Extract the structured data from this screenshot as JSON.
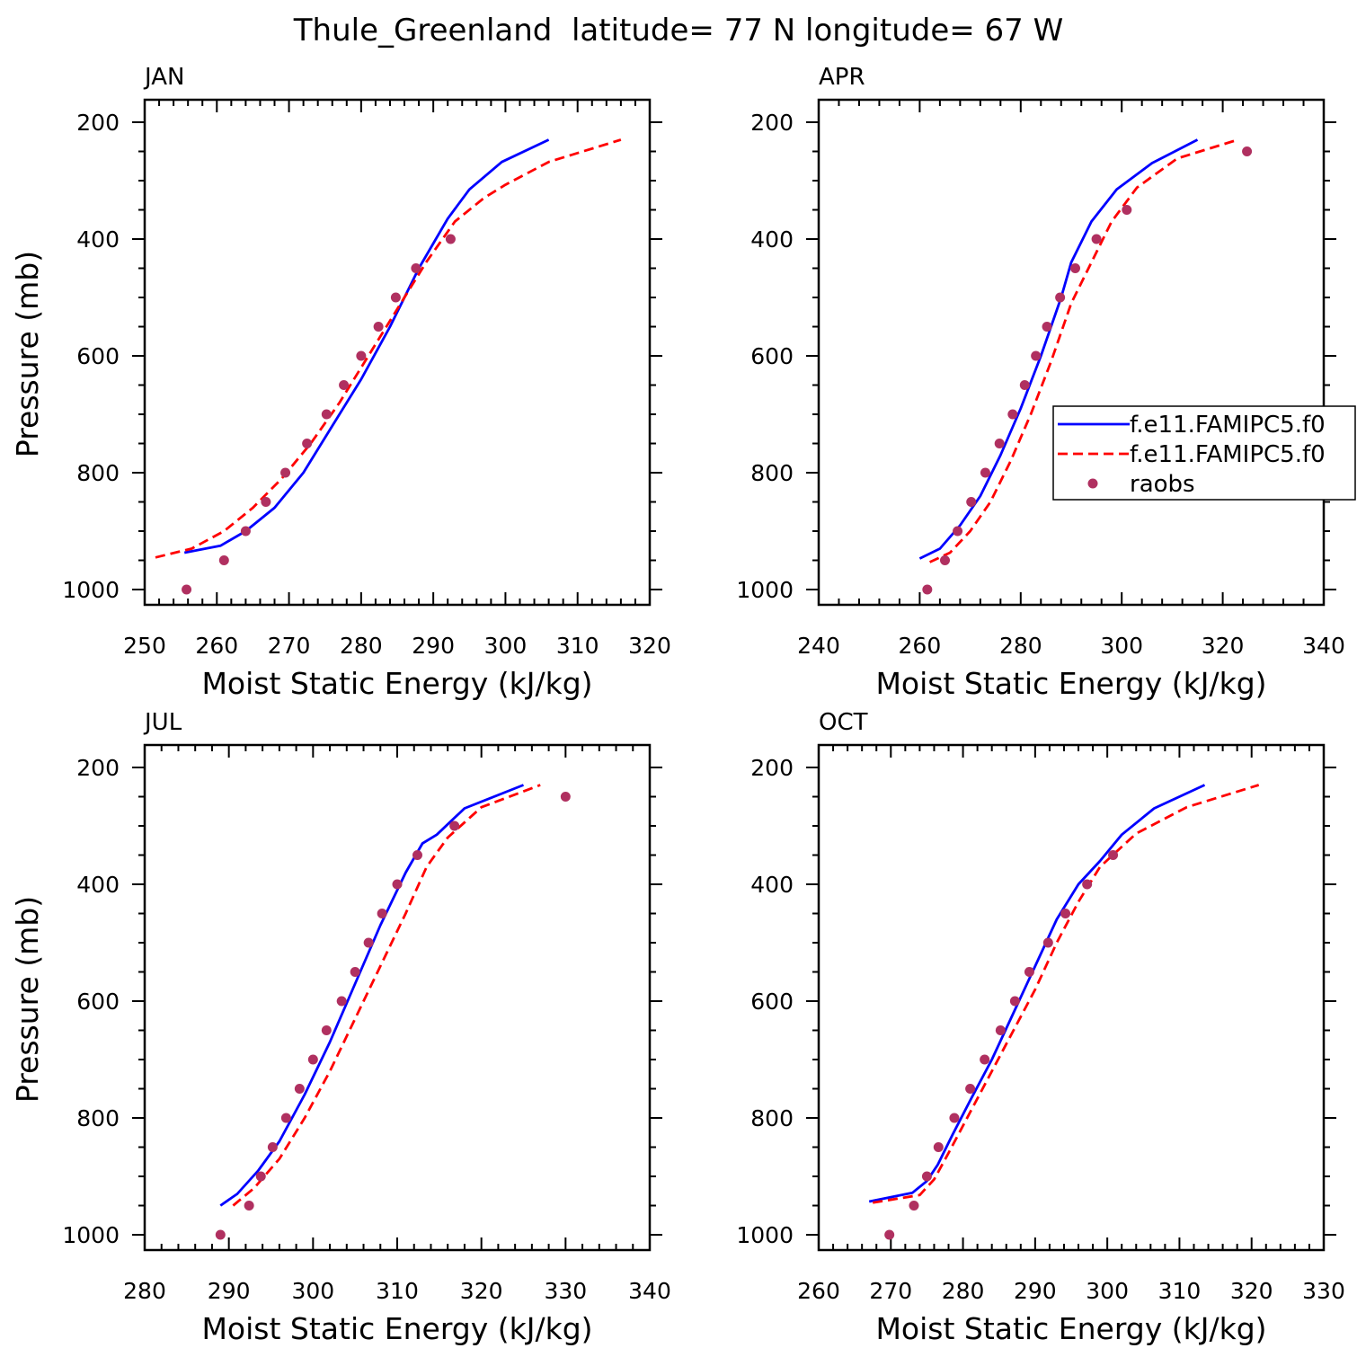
{
  "figure": {
    "title": "Thule_Greenland  latitude= 77 N longitude= 67 W"
  },
  "colors": {
    "model_solid": "#0000ff",
    "model_dashed": "#ff0000",
    "raobs": "#b03060",
    "axes": "#000000"
  },
  "legend": {
    "entries": [
      {
        "label": "f.e11.FAMIPC5.f0",
        "style": "solid",
        "color": "#0000ff"
      },
      {
        "label": "f.e11.FAMIPC5.f0",
        "style": "dashed",
        "color": "#ff0000"
      },
      {
        "label": "raobs",
        "style": "marker",
        "color": "#b03060"
      }
    ]
  },
  "chart_data": [
    {
      "type": "line",
      "panel": "JAN",
      "xlabel": "Moist Static Energy (kJ/kg)",
      "ylabel": "Pressure (mb)",
      "xlim": [
        250,
        320
      ],
      "ylim": [
        200,
        1000
      ],
      "xticks": [
        250,
        260,
        270,
        280,
        290,
        300,
        310,
        320
      ],
      "yticks": [
        200,
        400,
        600,
        800,
        1000
      ],
      "y_inverted": true,
      "series": [
        {
          "style": "solid",
          "color": "#0000ff",
          "x": [
            255.5,
            260.5,
            264,
            268,
            272,
            276,
            280,
            284,
            288,
            292,
            295,
            299.5,
            306
          ],
          "y": [
            937,
            925,
            900,
            860,
            800,
            720,
            640,
            550,
            450,
            365,
            315,
            268,
            230
          ]
        },
        {
          "style": "dashed",
          "color": "#ff0000",
          "x": [
            251.5,
            256.5,
            261,
            265,
            269,
            273,
            277,
            281,
            285,
            289,
            293,
            297,
            300,
            306,
            316
          ],
          "y": [
            945,
            930,
            900,
            860,
            810,
            750,
            680,
            600,
            520,
            440,
            370,
            330,
            307,
            268,
            230
          ]
        },
        {
          "style": "marker",
          "color": "#b03060",
          "x": [
            255.8,
            261,
            264,
            266.8,
            269.5,
            272.5,
            275.2,
            277.6,
            280,
            282.4,
            284.8,
            287.6,
            292.4
          ],
          "y": [
            1000,
            950,
            900,
            850,
            800,
            750,
            700,
            650,
            600,
            550,
            500,
            450,
            400
          ]
        }
      ]
    },
    {
      "type": "line",
      "panel": "APR",
      "xlabel": "Moist Static Energy (kJ/kg)",
      "ylabel": "",
      "xlim": [
        240,
        340
      ],
      "ylim": [
        200,
        1000
      ],
      "xticks": [
        240,
        260,
        280,
        300,
        320,
        340
      ],
      "yticks": [
        200,
        400,
        600,
        800,
        1000
      ],
      "y_inverted": true,
      "legend_placement": "right",
      "series": [
        {
          "style": "solid",
          "color": "#0000ff",
          "x": [
            260,
            264,
            268,
            272,
            276,
            280,
            284,
            288,
            290,
            294,
            299,
            306,
            315
          ],
          "y": [
            947,
            930,
            890,
            840,
            770,
            690,
            600,
            500,
            440,
            370,
            315,
            270,
            230
          ]
        },
        {
          "style": "dashed",
          "color": "#ff0000",
          "x": [
            262,
            266,
            270,
            274,
            278,
            282,
            286,
            290,
            294,
            298,
            303,
            311,
            323
          ],
          "y": [
            953,
            937,
            900,
            850,
            780,
            700,
            610,
            510,
            440,
            370,
            312,
            262,
            230
          ]
        },
        {
          "style": "marker",
          "color": "#b03060",
          "x": [
            261.5,
            265,
            267.5,
            270.2,
            273,
            275.8,
            278.4,
            280.8,
            283,
            285.2,
            287.8,
            290.8,
            295,
            301,
            324.8
          ],
          "y": [
            1000,
            950,
            900,
            850,
            800,
            750,
            700,
            650,
            600,
            550,
            500,
            450,
            400,
            350,
            250
          ]
        }
      ]
    },
    {
      "type": "line",
      "panel": "JUL",
      "xlabel": "Moist Static Energy (kJ/kg)",
      "ylabel": "Pressure (mb)",
      "xlim": [
        280,
        340
      ],
      "ylim": [
        200,
        1000
      ],
      "xticks": [
        280,
        290,
        300,
        310,
        320,
        330,
        340
      ],
      "yticks": [
        200,
        400,
        600,
        800,
        1000
      ],
      "y_inverted": true,
      "series": [
        {
          "style": "solid",
          "color": "#0000ff",
          "x": [
            289,
            291,
            293.5,
            296,
            299,
            302,
            305,
            308,
            311,
            313,
            314.7,
            318,
            325
          ],
          "y": [
            950,
            930,
            890,
            840,
            760,
            670,
            570,
            470,
            380,
            330,
            315,
            270,
            230
          ]
        },
        {
          "style": "dashed",
          "color": "#ff0000",
          "x": [
            290.5,
            293,
            296,
            299,
            302,
            305,
            308,
            311,
            313.5,
            316,
            320,
            327
          ],
          "y": [
            950,
            920,
            870,
            800,
            720,
            630,
            540,
            450,
            370,
            320,
            268,
            230
          ]
        },
        {
          "style": "marker",
          "color": "#b03060",
          "x": [
            289,
            292.4,
            293.8,
            295.2,
            296.8,
            298.4,
            300,
            301.6,
            303.4,
            305,
            306.6,
            308.2,
            310,
            312.4,
            316.8,
            330
          ],
          "y": [
            1000,
            950,
            900,
            850,
            800,
            750,
            700,
            650,
            600,
            550,
            500,
            450,
            400,
            350,
            300,
            250
          ]
        }
      ]
    },
    {
      "type": "line",
      "panel": "OCT",
      "xlabel": "Moist Static Energy (kJ/kg)",
      "ylabel": "",
      "xlim": [
        260,
        330
      ],
      "ylim": [
        200,
        1000
      ],
      "xticks": [
        260,
        270,
        280,
        290,
        300,
        310,
        320,
        330
      ],
      "yticks": [
        200,
        400,
        600,
        800,
        1000
      ],
      "y_inverted": true,
      "series": [
        {
          "style": "solid",
          "color": "#0000ff",
          "x": [
            267,
            273,
            275,
            276.5,
            278.5,
            281,
            284,
            287,
            290,
            293,
            296,
            299,
            302,
            306.5,
            313.5
          ],
          "y": [
            943,
            928,
            908,
            880,
            830,
            770,
            700,
            620,
            540,
            460,
            400,
            360,
            315,
            270,
            230
          ]
        },
        {
          "style": "dashed",
          "color": "#ff0000",
          "x": [
            267.5,
            274,
            276,
            278,
            281,
            284,
            287,
            290,
            293,
            296,
            299,
            304,
            311,
            321
          ],
          "y": [
            945,
            932,
            905,
            860,
            790,
            720,
            650,
            580,
            500,
            430,
            370,
            313,
            268,
            230
          ]
        },
        {
          "style": "marker",
          "color": "#b03060",
          "x": [
            269.8,
            273.2,
            275,
            276.6,
            278.8,
            281,
            283,
            285.2,
            287.2,
            289.2,
            291.8,
            294.2,
            297.2,
            300.8
          ],
          "y": [
            1000,
            950,
            900,
            850,
            800,
            750,
            700,
            650,
            600,
            550,
            500,
            450,
            400,
            350
          ]
        }
      ]
    }
  ]
}
